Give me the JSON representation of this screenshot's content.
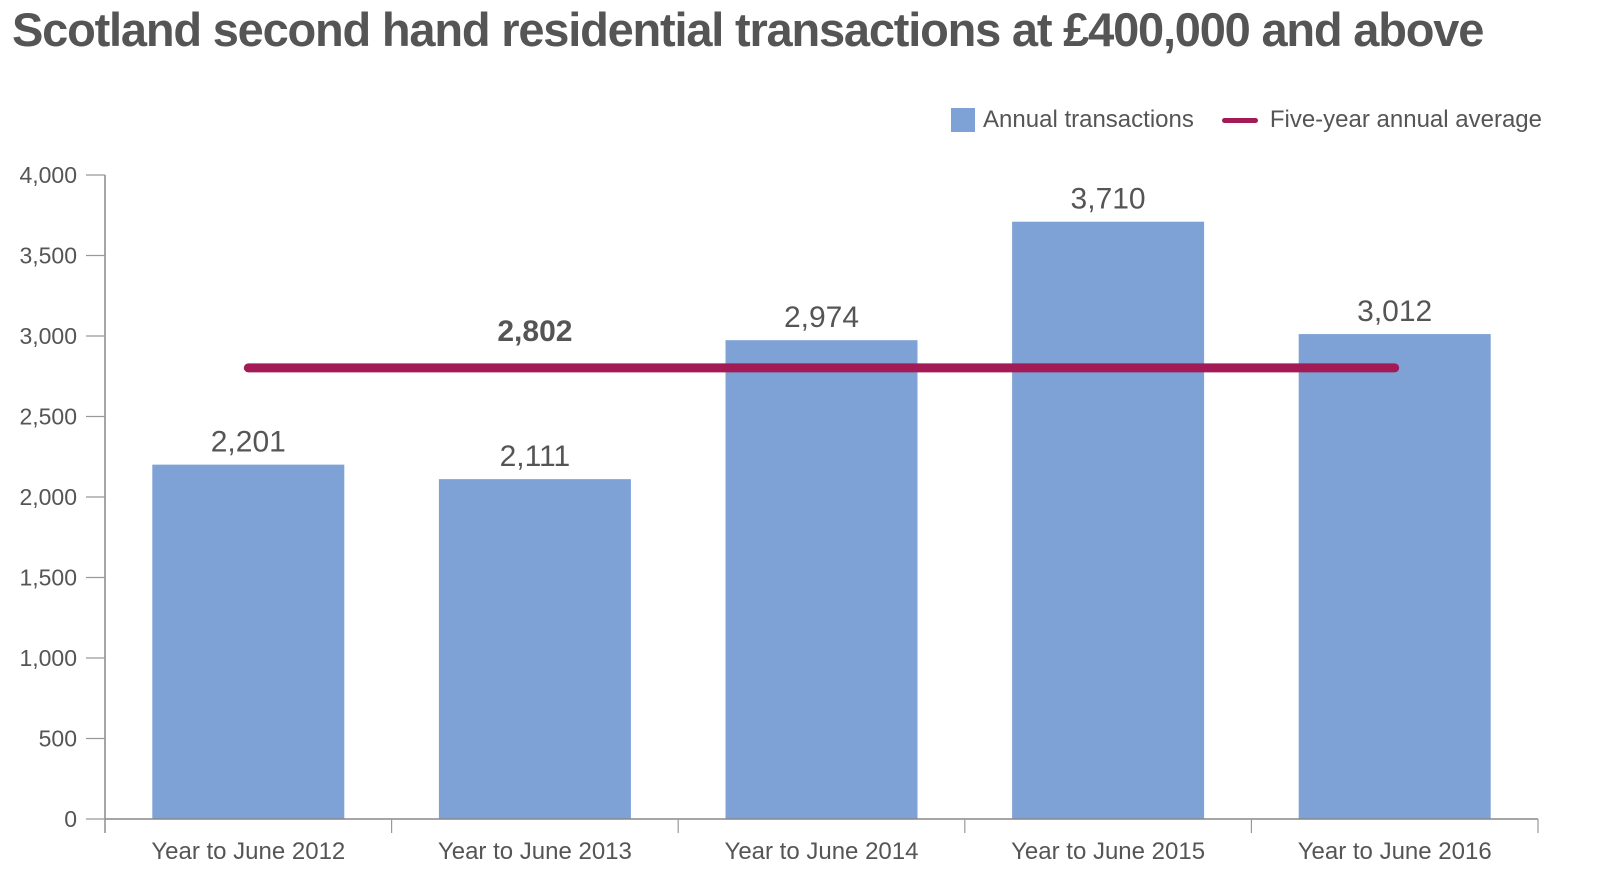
{
  "chart_data": {
    "type": "bar",
    "title": "Scotland second hand residential transactions at £400,000 and above",
    "xlabel": "",
    "ylabel": "",
    "categories": [
      "Year to June 2012",
      "Year to June 2013",
      "Year to June 2014",
      "Year to June 2015",
      "Year to June 2016"
    ],
    "series": [
      {
        "name": "Annual transactions",
        "type": "bar",
        "values": [
          2201,
          2111,
          2974,
          3710,
          3012
        ],
        "labels": [
          "2,201",
          "2,111",
          "2,974",
          "3,710",
          "3,012"
        ],
        "color": "#7fa2d6"
      },
      {
        "name": "Five-year annual average",
        "type": "line",
        "value": 2802,
        "label": "2,802",
        "color": "#a21b56"
      }
    ],
    "ylim": [
      0,
      4000
    ],
    "yticks": [
      0,
      500,
      1000,
      1500,
      2000,
      2500,
      3000,
      3500,
      4000
    ],
    "ytick_labels": [
      "0",
      "500",
      "1,000",
      "1,500",
      "2,000",
      "2,500",
      "3,000",
      "3,500",
      "4,000"
    ],
    "grid": false,
    "legend": {
      "position": "top-right",
      "entries": [
        "Annual transactions",
        "Five-year annual average"
      ]
    }
  }
}
